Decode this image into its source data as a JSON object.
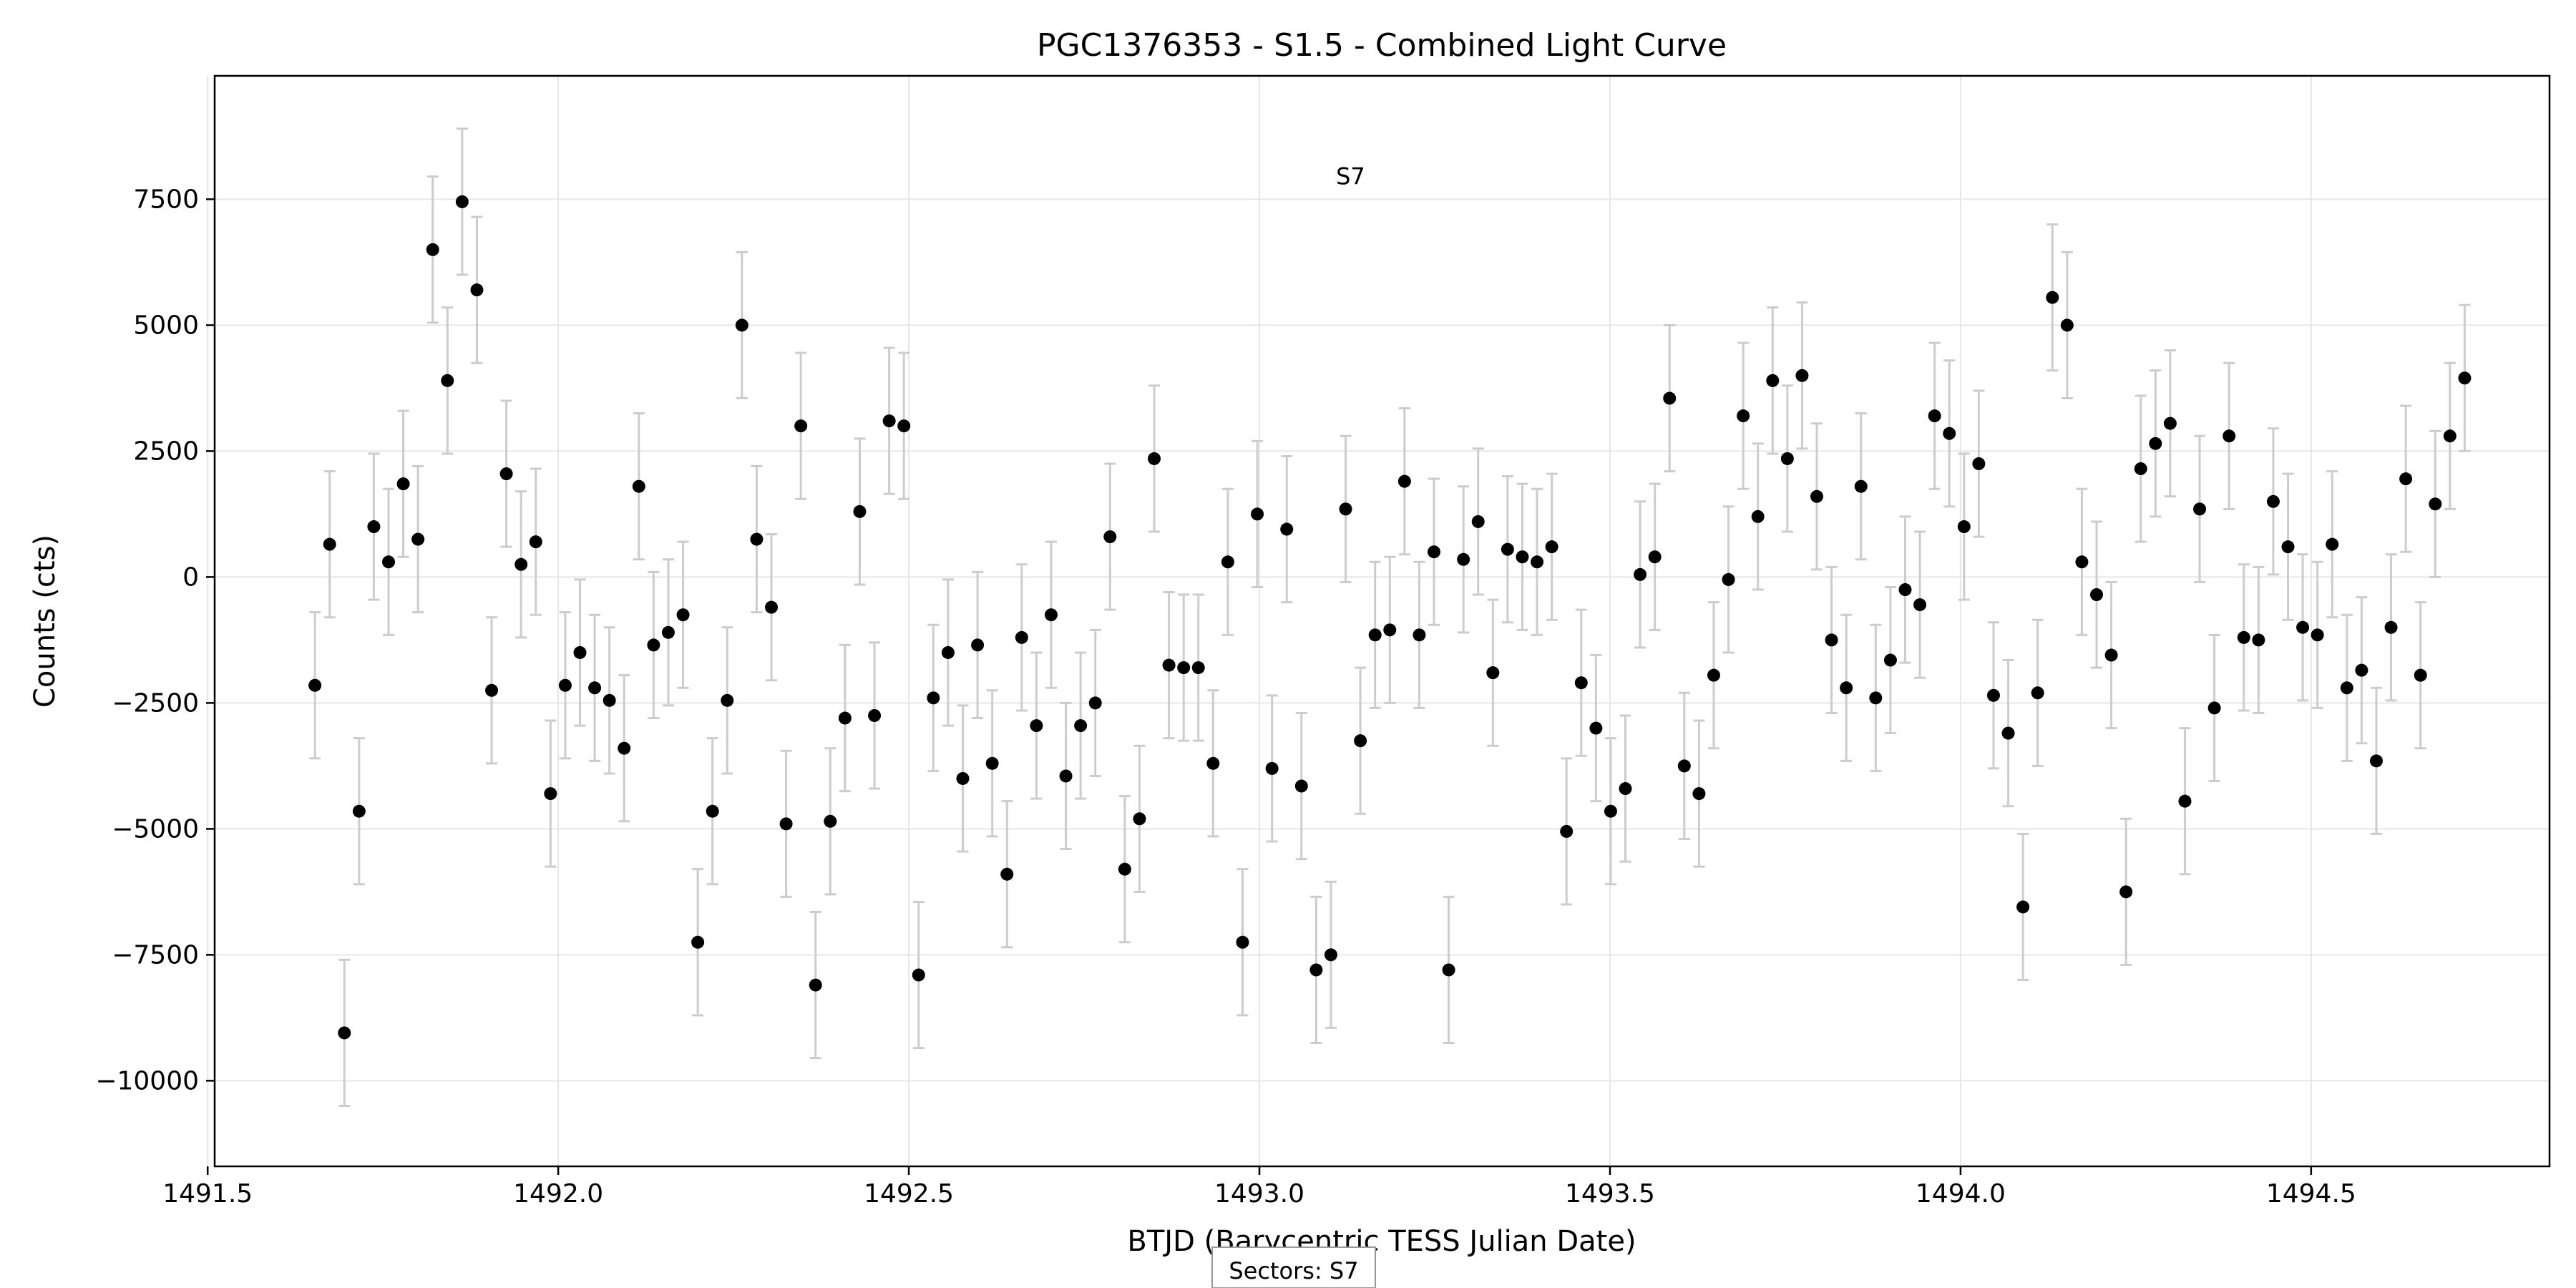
{
  "chart_data": {
    "type": "scatter",
    "title": "PGC1376353 - S1.5 - Combined Light Curve",
    "xlabel": "BTJD (Barycentric TESS Julian Date)",
    "ylabel": "Counts (cts)",
    "xlim": [
      1491.51,
      1494.84
    ],
    "ylim": [
      -11700,
      9950
    ],
    "xticks": [
      {
        "value": 1491.5,
        "label": "1491.5"
      },
      {
        "value": 1492.0,
        "label": "1492.0"
      },
      {
        "value": 1492.5,
        "label": "1492.5"
      },
      {
        "value": 1493.0,
        "label": "1493.0"
      },
      {
        "value": 1493.5,
        "label": "1493.5"
      },
      {
        "value": 1494.0,
        "label": "1494.0"
      },
      {
        "value": 1494.5,
        "label": "1494.5"
      }
    ],
    "yticks": [
      {
        "value": -10000,
        "label": "−10000"
      },
      {
        "value": -7500,
        "label": "−7500"
      },
      {
        "value": -5000,
        "label": "−5000"
      },
      {
        "value": -2500,
        "label": "−2500"
      },
      {
        "value": 0,
        "label": "0"
      },
      {
        "value": 2500,
        "label": "2500"
      },
      {
        "value": 5000,
        "label": "5000"
      },
      {
        "value": 7500,
        "label": "7500"
      }
    ],
    "grid": true,
    "error": 1450,
    "annotation": {
      "text": "S7",
      "x": 1493.13,
      "y": 7800
    },
    "footer": "Sectors: S7",
    "colors": {
      "point": "#000000",
      "errorbar": "#cccccc",
      "grid": "#e6e6e6"
    },
    "points": [
      [
        1491.653,
        -2150
      ],
      [
        1491.674,
        650
      ],
      [
        1491.695,
        -9050
      ],
      [
        1491.716,
        -4650
      ],
      [
        1491.737,
        1000
      ],
      [
        1491.758,
        300
      ],
      [
        1491.779,
        1850
      ],
      [
        1491.8,
        750
      ],
      [
        1491.821,
        6500
      ],
      [
        1491.842,
        3900
      ],
      [
        1491.863,
        7450
      ],
      [
        1491.884,
        5700
      ],
      [
        1491.905,
        -2250
      ],
      [
        1491.926,
        2050
      ],
      [
        1491.947,
        250
      ],
      [
        1491.968,
        700
      ],
      [
        1491.989,
        -4300
      ],
      [
        1492.01,
        -2150
      ],
      [
        1492.031,
        -1500
      ],
      [
        1492.052,
        -2200
      ],
      [
        1492.073,
        -2450
      ],
      [
        1492.094,
        -3400
      ],
      [
        1492.115,
        1800
      ],
      [
        1492.136,
        -1350
      ],
      [
        1492.157,
        -1100
      ],
      [
        1492.178,
        -750
      ],
      [
        1492.199,
        -7250
      ],
      [
        1492.22,
        -4650
      ],
      [
        1492.241,
        -2450
      ],
      [
        1492.262,
        5000
      ],
      [
        1492.283,
        750
      ],
      [
        1492.304,
        -600
      ],
      [
        1492.325,
        -4900
      ],
      [
        1492.346,
        3000
      ],
      [
        1492.367,
        -8100
      ],
      [
        1492.388,
        -4850
      ],
      [
        1492.409,
        -2800
      ],
      [
        1492.43,
        1300
      ],
      [
        1492.451,
        -2750
      ],
      [
        1492.472,
        3100
      ],
      [
        1492.493,
        3000
      ],
      [
        1492.514,
        -7900
      ],
      [
        1492.535,
        -2400
      ],
      [
        1492.556,
        -1500
      ],
      [
        1492.577,
        -4000
      ],
      [
        1492.598,
        -1350
      ],
      [
        1492.619,
        -3700
      ],
      [
        1492.64,
        -5900
      ],
      [
        1492.661,
        -1200
      ],
      [
        1492.682,
        -2950
      ],
      [
        1492.703,
        -750
      ],
      [
        1492.724,
        -3950
      ],
      [
        1492.745,
        -2950
      ],
      [
        1492.766,
        -2500
      ],
      [
        1492.787,
        800
      ],
      [
        1492.808,
        -5800
      ],
      [
        1492.829,
        -4800
      ],
      [
        1492.85,
        2350
      ],
      [
        1492.871,
        -1750
      ],
      [
        1492.892,
        -1800
      ],
      [
        1492.913,
        -1800
      ],
      [
        1492.934,
        -3700
      ],
      [
        1492.955,
        300
      ],
      [
        1492.976,
        -7250
      ],
      [
        1492.997,
        1250
      ],
      [
        1493.018,
        -3800
      ],
      [
        1493.039,
        950
      ],
      [
        1493.06,
        -4150
      ],
      [
        1493.081,
        -7800
      ],
      [
        1493.102,
        -7500
      ],
      [
        1493.123,
        1350
      ],
      [
        1493.144,
        -3250
      ],
      [
        1493.165,
        -1150
      ],
      [
        1493.186,
        -1050
      ],
      [
        1493.207,
        1900
      ],
      [
        1493.228,
        -1150
      ],
      [
        1493.249,
        500
      ],
      [
        1493.27,
        -7800
      ],
      [
        1493.291,
        350
      ],
      [
        1493.312,
        1100
      ],
      [
        1493.333,
        -1900
      ],
      [
        1493.354,
        550
      ],
      [
        1493.375,
        400
      ],
      [
        1493.396,
        300
      ],
      [
        1493.417,
        600
      ],
      [
        1493.438,
        -5050
      ],
      [
        1493.459,
        -2100
      ],
      [
        1493.48,
        -3000
      ],
      [
        1493.501,
        -4650
      ],
      [
        1493.522,
        -4200
      ],
      [
        1493.543,
        50
      ],
      [
        1493.564,
        400
      ],
      [
        1493.585,
        3550
      ],
      [
        1493.606,
        -3750
      ],
      [
        1493.627,
        -4300
      ],
      [
        1493.648,
        -1950
      ],
      [
        1493.669,
        -50
      ],
      [
        1493.69,
        3200
      ],
      [
        1493.711,
        1200
      ],
      [
        1493.732,
        3900
      ],
      [
        1493.753,
        2350
      ],
      [
        1493.774,
        4000
      ],
      [
        1493.795,
        1600
      ],
      [
        1493.816,
        -1250
      ],
      [
        1493.837,
        -2200
      ],
      [
        1493.858,
        1800
      ],
      [
        1493.879,
        -2400
      ],
      [
        1493.9,
        -1650
      ],
      [
        1493.921,
        -250
      ],
      [
        1493.942,
        -550
      ],
      [
        1493.963,
        3200
      ],
      [
        1493.984,
        2850
      ],
      [
        1494.005,
        1000
      ],
      [
        1494.026,
        2250
      ],
      [
        1494.047,
        -2350
      ],
      [
        1494.068,
        -3100
      ],
      [
        1494.089,
        -6550
      ],
      [
        1494.11,
        -2300
      ],
      [
        1494.131,
        5550
      ],
      [
        1494.152,
        5000
      ],
      [
        1494.173,
        300
      ],
      [
        1494.194,
        -350
      ],
      [
        1494.215,
        -1550
      ],
      [
        1494.236,
        -6250
      ],
      [
        1494.257,
        2150
      ],
      [
        1494.278,
        2650
      ],
      [
        1494.299,
        3050
      ],
      [
        1494.32,
        -4450
      ],
      [
        1494.341,
        1350
      ],
      [
        1494.362,
        -2600
      ],
      [
        1494.383,
        2800
      ],
      [
        1494.404,
        -1200
      ],
      [
        1494.425,
        -1250
      ],
      [
        1494.446,
        1500
      ],
      [
        1494.467,
        600
      ],
      [
        1494.488,
        -1000
      ],
      [
        1494.509,
        -1150
      ],
      [
        1494.53,
        650
      ],
      [
        1494.551,
        -2200
      ],
      [
        1494.572,
        -1850
      ],
      [
        1494.593,
        -3650
      ],
      [
        1494.614,
        -1000
      ],
      [
        1494.635,
        1950
      ],
      [
        1494.656,
        -1950
      ],
      [
        1494.677,
        1450
      ],
      [
        1494.698,
        2800
      ],
      [
        1494.719,
        3950
      ]
    ]
  }
}
